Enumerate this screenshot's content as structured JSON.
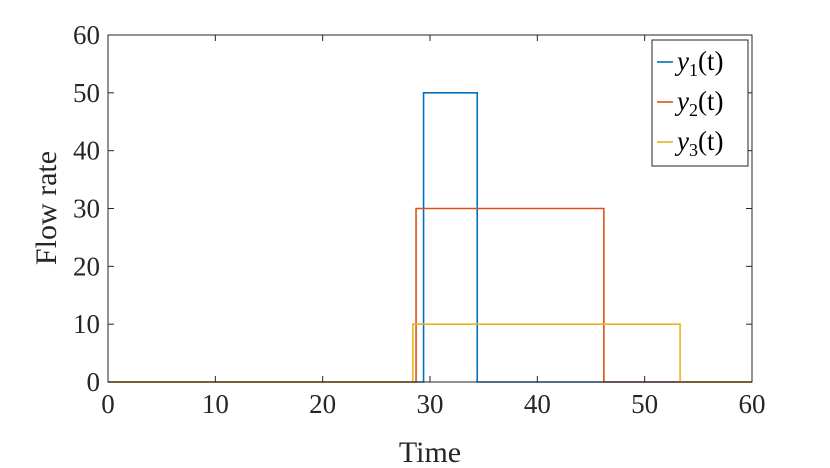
{
  "chart_data": {
    "type": "line",
    "title": "",
    "xlabel": "Time",
    "ylabel": "Flow rate",
    "xlim": [
      0,
      60
    ],
    "ylim": [
      0,
      60
    ],
    "xticks": [
      0,
      10,
      20,
      30,
      40,
      50,
      60
    ],
    "yticks": [
      0,
      10,
      20,
      30,
      40,
      50,
      60
    ],
    "grid": false,
    "legend_position": "top-right",
    "series": [
      {
        "name": "y1(t)",
        "legend": {
          "base": "y",
          "sub": "1",
          "arg": "(t)"
        },
        "color": "#0072BD",
        "x": [
          0,
          29.4,
          29.4,
          34.4,
          34.4,
          60
        ],
        "y": [
          0,
          0,
          50,
          50,
          0,
          0
        ]
      },
      {
        "name": "y2(t)",
        "legend": {
          "base": "y",
          "sub": "2",
          "arg": "(t)"
        },
        "color": "#D95319",
        "x": [
          0,
          28.7,
          28.7,
          46.2,
          46.2,
          60
        ],
        "y": [
          0,
          0,
          30,
          30,
          0,
          0
        ]
      },
      {
        "name": "y3(t)",
        "legend": {
          "base": "y",
          "sub": "3",
          "arg": "(t)"
        },
        "color": "#EDB120",
        "x": [
          0,
          28.4,
          28.4,
          53.3,
          53.3,
          60
        ],
        "y": [
          0,
          0,
          10,
          10,
          0,
          0
        ]
      }
    ]
  }
}
